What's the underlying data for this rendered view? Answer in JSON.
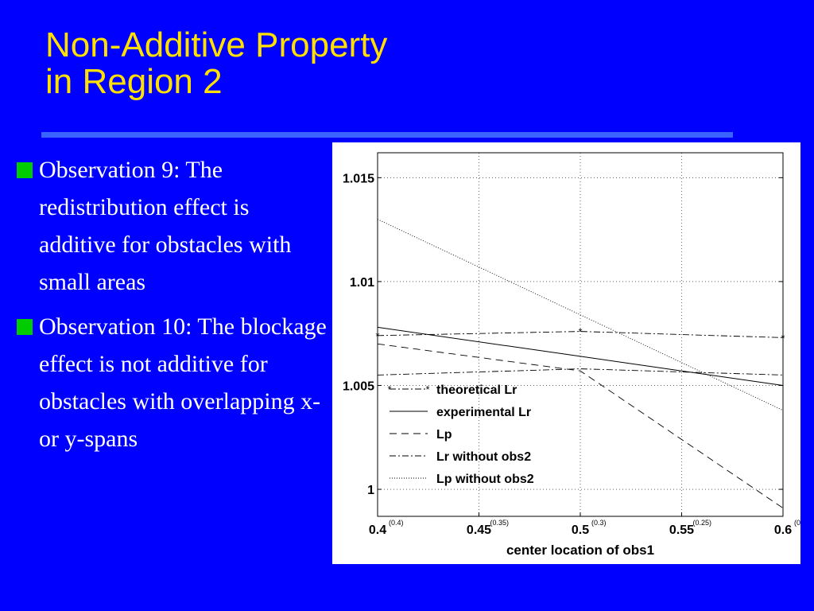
{
  "slide": {
    "title_line1": "Non-Additive Property",
    "title_line2": "in Region 2",
    "colors": {
      "background": "#0000ff",
      "title": "#ffe000",
      "rule": "#3a64ff",
      "bullet": "#00cc00",
      "text": "#ffffff"
    },
    "bullets": [
      {
        "text": "Observation 9: The redistribution effect is additive for obstacles with small areas"
      },
      {
        "text": "Observation 10: The blockage effect is not additive for obstacles with overlapping x- or y-spans"
      }
    ]
  },
  "chart_data": {
    "type": "line",
    "title": "",
    "xlabel": "center location of obs1",
    "ylabel": "",
    "xlim": [
      0.4,
      0.6
    ],
    "ylim": [
      0.9987,
      1.0162
    ],
    "xticks": [
      0.4,
      0.45,
      0.5,
      0.55,
      0.6
    ],
    "xtick_labels": [
      "0.4",
      "0.45",
      "0.5",
      "0.55",
      "0.6"
    ],
    "xtick_sublabels": [
      "(0.4)",
      "(0.35)",
      "(0.3)",
      "(0.25)",
      "(0"
    ],
    "yticks": [
      1,
      1.005,
      1.01,
      1.015
    ],
    "ytick_labels": [
      "1",
      "1.005",
      "1.01",
      "1.015"
    ],
    "grid": true,
    "legend_position": "lower-left",
    "series": [
      {
        "name": "theoretical Lr",
        "style": "dashdot-star",
        "x": [
          0.4,
          0.5,
          0.6
        ],
        "y": [
          1.0074,
          1.0076,
          1.0073
        ]
      },
      {
        "name": "experimental Lr",
        "style": "solid",
        "x": [
          0.4,
          0.5,
          0.55,
          0.6
        ],
        "y": [
          1.0078,
          1.0064,
          1.0057,
          1.005
        ]
      },
      {
        "name": "Lp",
        "style": "dashed",
        "x": [
          0.4,
          0.5,
          0.6
        ],
        "y": [
          1.007,
          1.0057,
          0.9991
        ]
      },
      {
        "name": "Lr without obs2",
        "style": "dashdot",
        "x": [
          0.4,
          0.5,
          0.6
        ],
        "y": [
          1.0055,
          1.0058,
          1.0055
        ]
      },
      {
        "name": "Lp without obs2",
        "style": "dotted",
        "x": [
          0.4,
          0.6
        ],
        "y": [
          1.013,
          1.0038
        ]
      }
    ]
  }
}
